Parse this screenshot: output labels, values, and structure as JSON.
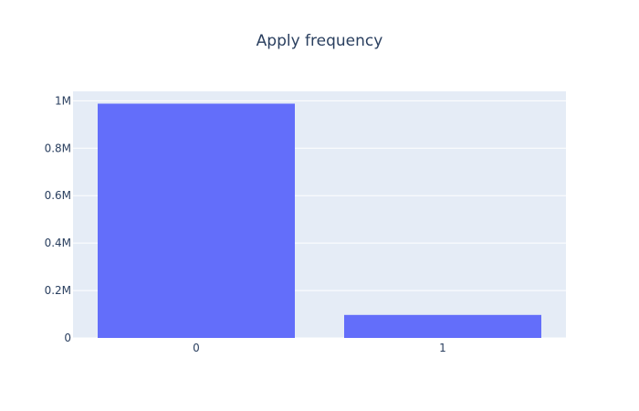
{
  "chart_data": {
    "type": "bar",
    "title": "Apply frequency",
    "xlabel": "",
    "ylabel": "",
    "categories": [
      "0",
      "1"
    ],
    "values": [
      988000,
      97000
    ],
    "ylim": [
      0,
      1040000
    ],
    "yticks": [
      0,
      200000,
      400000,
      600000,
      800000,
      1000000
    ],
    "ytick_labels": [
      "0",
      "0.2M",
      "0.4M",
      "0.6M",
      "0.8M",
      "1M"
    ],
    "grid": true,
    "legend": "none",
    "colors": {
      "bar": "#636efa",
      "plot_bg": "#e5ecf6",
      "grid": "#ffffff",
      "text": "#2a3f5f"
    }
  }
}
